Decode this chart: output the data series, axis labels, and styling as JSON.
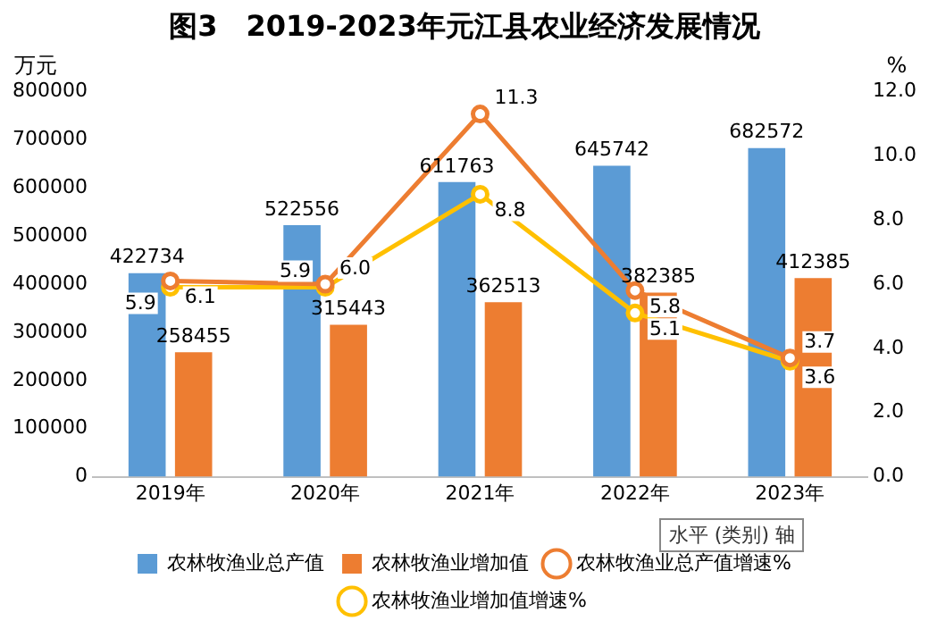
{
  "chart_data": {
    "type": "bar",
    "title": "图3　2019-2023年元江县农业经济发展情况",
    "categories": [
      "2019年",
      "2020年",
      "2021年",
      "2022年",
      "2023年"
    ],
    "series": [
      {
        "name": "农林牧渔业总产值",
        "color": "#5b9bd5",
        "values": [
          422734,
          522556,
          611763,
          645742,
          682572
        ]
      },
      {
        "name": "农林牧渔业增加值",
        "color": "#ed7d31",
        "values": [
          258455,
          315443,
          362513,
          382385,
          412385
        ]
      },
      {
        "name": "农林牧渔业总产值增速%",
        "type": "line",
        "axis": "y2",
        "color": "#ed7d31",
        "values": [
          6.1,
          6.0,
          11.3,
          5.8,
          3.7
        ],
        "value_labels": [
          "6.1",
          "6.0",
          "11.3",
          "5.8",
          "3.7"
        ]
      },
      {
        "name": "农林牧渔业增加值增速%",
        "type": "line",
        "axis": "y2",
        "color": "#ffc000",
        "values": [
          5.9,
          5.9,
          8.8,
          5.1,
          3.6
        ]
      }
    ],
    "ylabel": "万元",
    "y2label": "%",
    "ylim": [
      0,
      800000
    ],
    "yticks": [
      0,
      100000,
      200000,
      300000,
      400000,
      500000,
      600000,
      700000,
      800000
    ],
    "y2lim": [
      0,
      12
    ],
    "y2ticks": [
      {
        "value": 0,
        "label": "0.0"
      },
      {
        "value": 2,
        "label": "2.0"
      },
      {
        "value": 4,
        "label": "4.0"
      },
      {
        "value": 6,
        "label": "6.0"
      },
      {
        "value": 8,
        "label": "8.0"
      },
      {
        "value": 10,
        "label": "10.0"
      },
      {
        "value": 12,
        "label": "12.0"
      }
    ],
    "marker": "circle",
    "data_labels": true,
    "legend": "bottom",
    "grid": false,
    "annotations": [
      "水平 (类别) 轴"
    ]
  }
}
